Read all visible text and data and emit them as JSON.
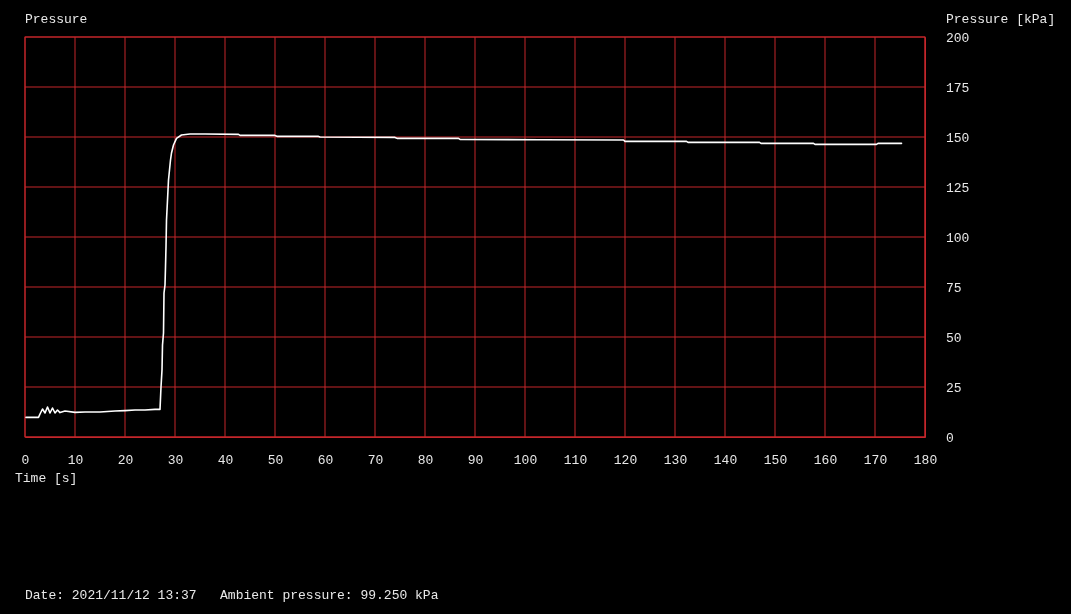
{
  "chart_data": {
    "type": "line",
    "title": "Pressure",
    "ylabel": "Pressure [kPa]",
    "xlabel": "Time [s]",
    "annotations": [
      "Date: 2021/11/12 13:37   Ambient pressure: 99.250 kPa"
    ],
    "x": [
      0.2,
      2.7,
      3.0,
      3.5,
      4.0,
      4.5,
      5.0,
      5.5,
      6.0,
      6.5,
      7.0,
      8,
      10,
      12,
      15,
      18,
      20,
      22,
      24,
      26,
      27,
      27.2,
      27.4,
      27.5,
      27.7,
      27.8,
      28.0,
      28.1,
      28.2,
      28.3,
      28.5,
      28.7,
      28.9,
      29.1,
      29.3,
      29.7,
      30.3,
      31.3,
      33,
      36,
      42.7,
      43,
      50,
      50.5,
      58.7,
      59,
      74,
      74.5,
      86.7,
      87,
      103,
      119.7,
      120,
      132.3,
      132.6,
      146.9,
      147.2,
      157.7,
      158,
      170.3,
      170.6,
      175.3
    ],
    "series": [
      {
        "color": "#ffffff",
        "values": [
          9.8,
          9.8,
          11.5,
          14,
          12,
          15,
          12,
          14.5,
          12,
          13.5,
          12.2,
          13,
          12.3,
          12.5,
          12.5,
          13,
          13.2,
          13.5,
          13.5,
          13.8,
          13.8,
          25,
          33.5,
          46,
          52,
          72,
          76,
          85,
          95,
          108.5,
          118.5,
          128.5,
          133.5,
          138.5,
          142,
          146,
          149.3,
          151,
          151.5,
          151.5,
          151.3,
          150.8,
          150.8,
          150.3,
          150.3,
          150,
          149.8,
          149.3,
          149.3,
          148.8,
          148.6,
          148.5,
          147.8,
          147.8,
          147.3,
          147.3,
          146.8,
          146.8,
          146.3,
          146.3,
          146.8,
          146.8
        ]
      }
    ],
    "xlim": [
      0,
      180
    ],
    "xticks": [
      0,
      10,
      20,
      30,
      40,
      50,
      60,
      70,
      80,
      90,
      100,
      110,
      120,
      130,
      140,
      150,
      160,
      170,
      180
    ],
    "ylim": [
      0,
      200
    ],
    "yticks": [
      0,
      25,
      50,
      75,
      100,
      125,
      150,
      175,
      200
    ],
    "grid": true
  }
}
